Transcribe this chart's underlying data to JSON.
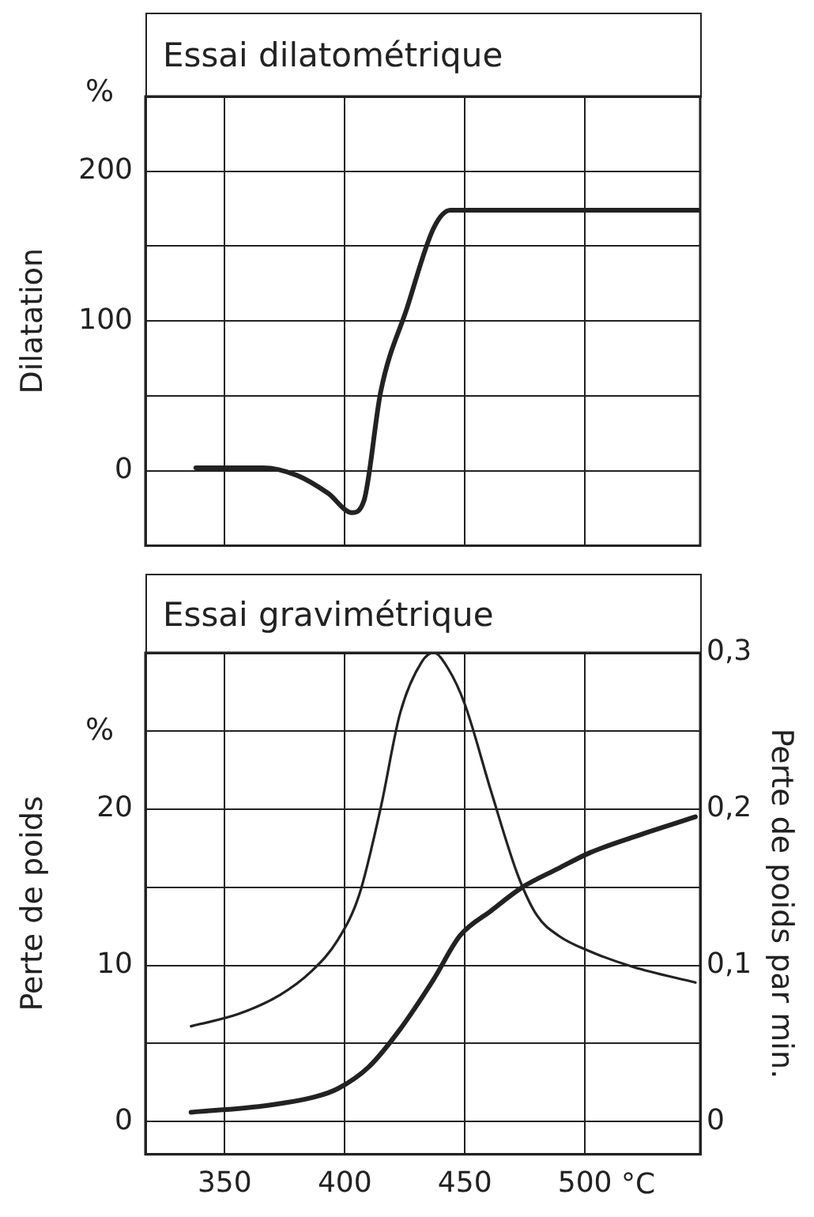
{
  "chart_data": [
    {
      "type": "line",
      "title": "Essai dilatométrique",
      "ylabel": "Dilatation",
      "annotations": [
        "%"
      ],
      "xlim": [
        317,
        548
      ],
      "xticks": [
        350,
        400,
        450,
        500
      ],
      "ylim": [
        -50,
        250
      ],
      "yticks": [
        0,
        {
          "value": 50,
          "label": null
        },
        100,
        {
          "value": 150,
          "label": null
        },
        200
      ],
      "tick_labels": "y",
      "grid": true,
      "legend": false,
      "marker": "none",
      "series": [
        {
          "color": "#222222",
          "x": [
            338,
            366,
            380,
            393,
            403,
            408,
            415,
            426,
            437,
            444,
            548
          ],
          "values": [
            2,
            2,
            -3,
            -15,
            -28,
            -20,
            53,
            109,
            162,
            174,
            174
          ]
        }
      ]
    },
    {
      "type": "line",
      "title": "Essai gravimétrique",
      "ylabel": "Perte de poids",
      "y2label": "Perte de poids par min.",
      "xlabel": "°C",
      "annotations": [
        "%"
      ],
      "xlim": [
        317,
        548
      ],
      "xticks": [
        350,
        400,
        450,
        500
      ],
      "ylim": [
        -2.1,
        30
      ],
      "yticks": [
        0,
        {
          "value": 5,
          "label": null
        },
        10,
        {
          "value": 15,
          "label": null
        },
        20,
        {
          "value": 25,
          "label": null
        }
      ],
      "y2lim": [
        -0.021,
        0.3
      ],
      "y2ticks": [
        0,
        {
          "value": 0.1,
          "label": "0,1"
        },
        {
          "value": 0.2,
          "label": "0,2"
        },
        {
          "value": 0.3,
          "label": "0,3"
        }
      ],
      "grid": true,
      "legend": false,
      "marker": "none",
      "series": [
        {
          "color": "#222222",
          "x": [
            336,
            366,
            388,
            397,
            410,
            423,
            437,
            448,
            461,
            474,
            489,
            502,
            520,
            546
          ],
          "values": [
            0.6,
            1.0,
            1.6,
            2.1,
            3.5,
            5.9,
            9.1,
            11.9,
            13.5,
            15.0,
            16.2,
            17.2,
            18.2,
            19.5
          ]
        },
        {
          "color": "#222222",
          "axis": "y2",
          "x": [
            336,
            356,
            373,
            386,
            397,
            406,
            415,
            423,
            432,
            437,
            443,
            450,
            461,
            472,
            480,
            489,
            502,
            520,
            546
          ],
          "values": [
            0.061,
            0.069,
            0.081,
            0.096,
            0.116,
            0.145,
            0.201,
            0.261,
            0.294,
            0.3,
            0.29,
            0.267,
            0.211,
            0.158,
            0.132,
            0.119,
            0.109,
            0.099,
            0.089
          ]
        }
      ]
    }
  ]
}
